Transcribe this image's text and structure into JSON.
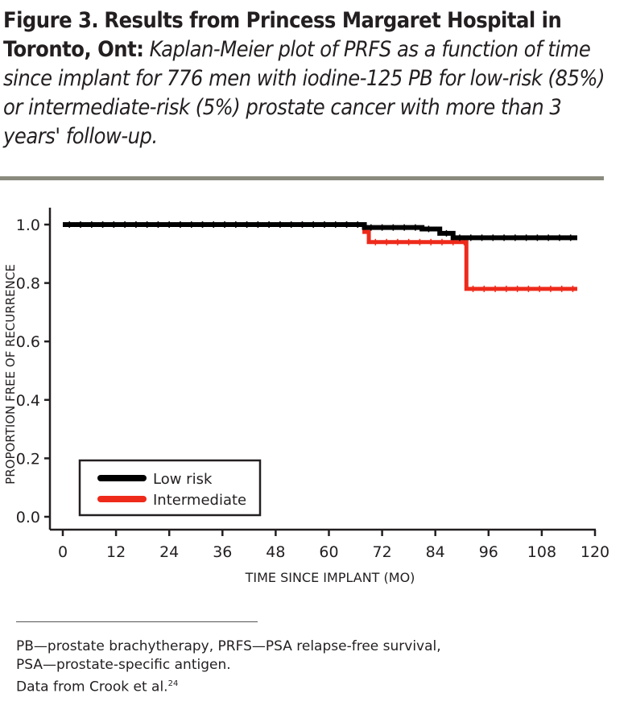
{
  "caption": {
    "label": "Figure 3.",
    "title": "Results from Princess Margaret Hospital in Toronto, Ont:",
    "description": "Kaplan-Meier plot of PRFS as a function of time since implant for 776 men with iodine-125 PB for low-risk (85%) or intermediate-risk (5%) prostate cancer with more than 3 years' follow-up."
  },
  "footnote": {
    "line1": "PB—prostate brachytherapy, PRFS—PSA relapse-free survival,",
    "line2": "PSA—prostate-specific antigen.",
    "line3": "Data from Crook et al.",
    "ref": "24"
  },
  "chart_data": {
    "type": "line",
    "xlabel": "TIME SINCE IMPLANT (MO)",
    "ylabel": "PROPORTION FREE OF RECURRENCE",
    "xlim": [
      0,
      120
    ],
    "ylim": [
      0,
      1
    ],
    "xticks": [
      0,
      12,
      24,
      36,
      48,
      60,
      72,
      84,
      96,
      108,
      120
    ],
    "yticks": [
      "0.0",
      "0.2",
      "0.4",
      "0.6",
      "0.8",
      "1.0"
    ],
    "legend_position": "bottom-left",
    "series": [
      {
        "name": "Low risk",
        "color": "#000000",
        "step": true,
        "x": [
          0,
          68,
          81,
          85,
          88,
          116
        ],
        "y": [
          1.0,
          0.99,
          0.985,
          0.97,
          0.955,
          0.955
        ]
      },
      {
        "name": "Intermediate",
        "color": "#ee2a1b",
        "step": true,
        "x": [
          0,
          68,
          69,
          91,
          116
        ],
        "y": [
          1.0,
          0.975,
          0.94,
          0.78,
          0.78
        ]
      }
    ]
  }
}
